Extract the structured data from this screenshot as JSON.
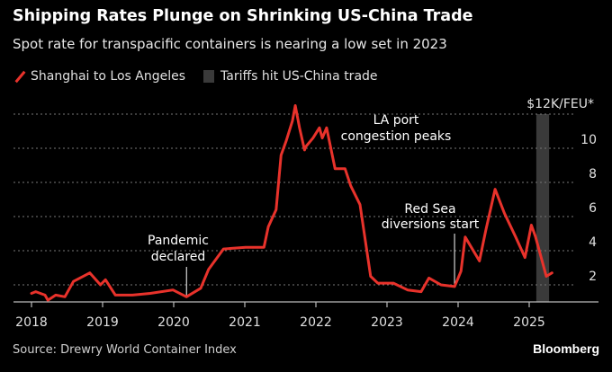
{
  "title": "Shipping Rates Plunge on Shrinking US-China Trade",
  "subtitle": "Spot rate for transpacific containers is nearing a low set in 2023",
  "legend": {
    "series": "Shanghai to Los Angeles",
    "band": "Tariffs hit US-China trade"
  },
  "source": "Source: Drewry World Container Index",
  "logo": "Bloomberg",
  "colors": {
    "background": "#000000",
    "line": "#e8322b",
    "band": "#3a3a3a",
    "grid": "#777777"
  },
  "chart_data": {
    "type": "line",
    "unit_label": "$12K/FEU*",
    "xlim": [
      2017.8,
      2025.9
    ],
    "ylim": [
      1,
      12
    ],
    "x_ticks": [
      "2018",
      "2019",
      "2020",
      "2021",
      "2022",
      "2023",
      "2024",
      "2025"
    ],
    "y_ticks": [
      2,
      4,
      6,
      8,
      10
    ],
    "grid": true,
    "legend_position": "top-left",
    "band": {
      "name": "Tariffs hit US-China trade",
      "from": 2025.1,
      "to": 2025.28
    },
    "annotations": [
      {
        "text": [
          "Pandemic",
          "declared"
        ],
        "x": 2020.18
      },
      {
        "text": [
          "LA port",
          "congestion peaks"
        ],
        "x": 2022.1
      },
      {
        "text": [
          "Red Sea",
          "diversions start"
        ],
        "x": 2023.95
      }
    ],
    "series": [
      {
        "name": "Shanghai to Los Angeles",
        "x": [
          2018.0,
          2018.06,
          2018.19,
          2018.23,
          2018.34,
          2018.47,
          2018.59,
          2018.82,
          2018.97,
          2019.04,
          2019.18,
          2019.42,
          2019.67,
          2019.99,
          2020.18,
          2020.38,
          2020.49,
          2020.7,
          2021.01,
          2021.27,
          2021.33,
          2021.44,
          2021.51,
          2021.58,
          2021.67,
          2021.71,
          2021.77,
          2021.84,
          2021.86,
          2021.96,
          2022.05,
          2022.09,
          2022.15,
          2022.27,
          2022.41,
          2022.49,
          2022.62,
          2022.77,
          2022.87,
          2023.09,
          2023.29,
          2023.48,
          2023.59,
          2023.76,
          2023.95,
          2024.04,
          2024.1,
          2024.3,
          2024.39,
          2024.52,
          2024.65,
          2024.81,
          2024.94,
          2025.03,
          2025.09,
          2025.24,
          2025.32
        ],
        "y": [
          1.5,
          1.6,
          1.4,
          1.1,
          1.4,
          1.3,
          2.2,
          2.7,
          2.0,
          2.3,
          1.4,
          1.4,
          1.5,
          1.7,
          1.3,
          1.8,
          2.9,
          4.1,
          4.2,
          4.2,
          5.4,
          6.4,
          9.6,
          10.4,
          11.6,
          12.5,
          11.2,
          9.9,
          10.1,
          10.6,
          11.2,
          10.6,
          11.2,
          8.8,
          8.8,
          7.8,
          6.7,
          2.5,
          2.1,
          2.1,
          1.7,
          1.6,
          2.4,
          2.0,
          1.9,
          2.8,
          4.8,
          3.4,
          5.2,
          7.6,
          6.2,
          4.8,
          3.6,
          5.5,
          4.8,
          2.5,
          2.7
        ]
      }
    ]
  }
}
